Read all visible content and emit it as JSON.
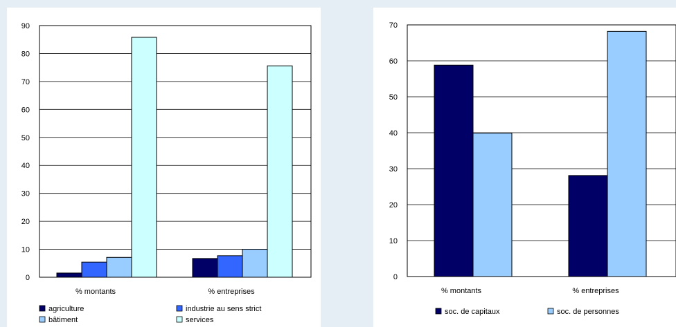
{
  "chart_data": [
    {
      "type": "bar",
      "categories": [
        "% montants",
        "% entreprises"
      ],
      "series": [
        {
          "name": "agriculture",
          "values": [
            1.5,
            6.7
          ]
        },
        {
          "name": "industrie au sens strict",
          "values": [
            5.4,
            7.7
          ]
        },
        {
          "name": "bâtiment",
          "values": [
            7.1,
            10.0
          ]
        },
        {
          "name": "services",
          "values": [
            85.8,
            75.6
          ]
        }
      ],
      "colors": [
        "#000066",
        "#3366ff",
        "#99ccff",
        "#ccffff"
      ],
      "ylim": [
        0,
        90
      ],
      "yticks": [
        0,
        10,
        20,
        30,
        40,
        50,
        60,
        70,
        80,
        90
      ],
      "grid": true,
      "legend_position": "bottom"
    },
    {
      "type": "bar",
      "categories": [
        "% montants",
        "% entreprises"
      ],
      "series": [
        {
          "name": "soc. de capitaux",
          "values": [
            58.8,
            28.1
          ]
        },
        {
          "name": "soc. de personnes",
          "values": [
            39.9,
            68.2
          ]
        }
      ],
      "colors": [
        "#000066",
        "#99ccff"
      ],
      "ylim": [
        0,
        70
      ],
      "yticks": [
        0,
        10,
        20,
        30,
        40,
        50,
        60,
        70
      ],
      "grid": true,
      "legend_position": "bottom"
    }
  ]
}
